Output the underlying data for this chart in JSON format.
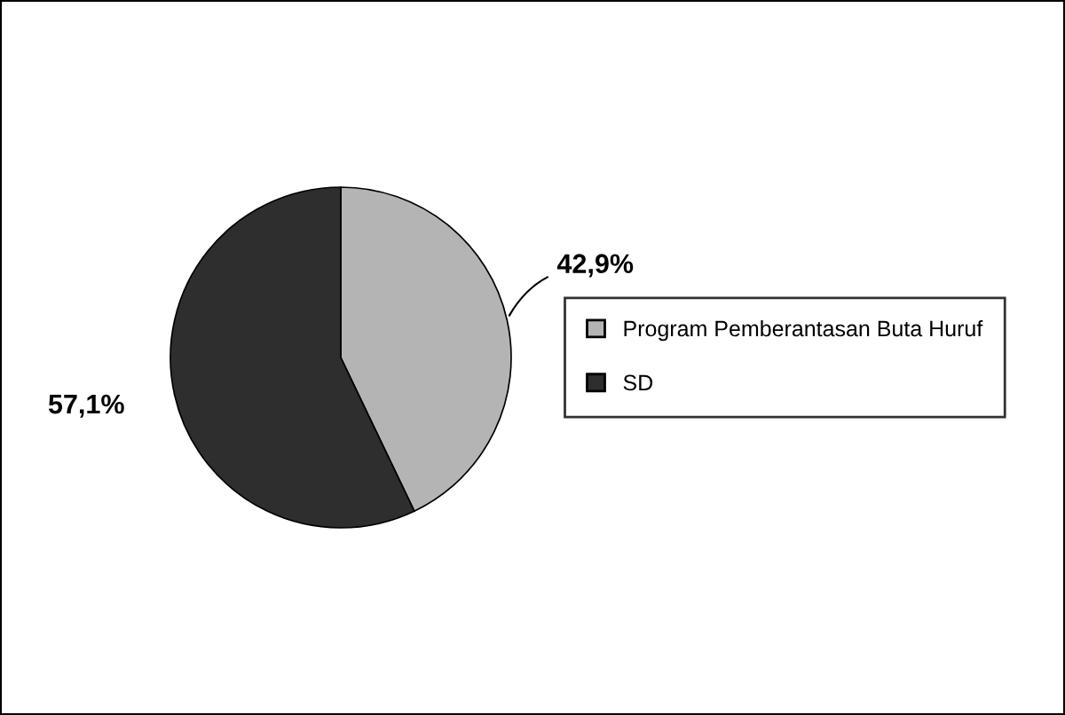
{
  "chart_data": {
    "type": "pie",
    "categories": [
      "Program Pemberantasan Buta Huruf",
      "SD"
    ],
    "values": [
      42.9,
      57.1
    ],
    "colors": [
      "#b4b4b4",
      "#2e2e2e"
    ],
    "value_labels": [
      "42,9%",
      "57,1%"
    ],
    "legend": "right"
  }
}
